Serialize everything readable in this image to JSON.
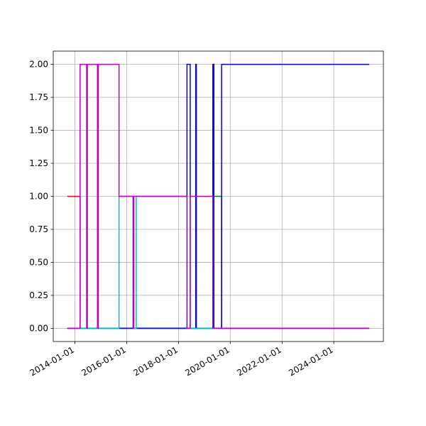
{
  "chart_data": {
    "type": "step",
    "x": [
      "2013-09-15",
      "2014-03-15",
      "2014-06-15",
      "2014-06-25",
      "2014-11-15",
      "2014-11-25",
      "2015-09-15",
      "2016-04-01",
      "2016-04-10",
      "2016-05-15",
      "2018-05-01",
      "2018-06-15",
      "2018-09-01",
      "2018-09-10",
      "2019-05-01",
      "2019-05-15",
      "2019-09-01",
      "2025-05-15"
    ],
    "series": [
      {
        "name": "red",
        "color": "#ff0000",
        "values": [
          1,
          0,
          0,
          0,
          0,
          0,
          0,
          0,
          0,
          0,
          0,
          0,
          0,
          0,
          0,
          0,
          0,
          0
        ]
      },
      {
        "name": "green",
        "color": "#008000",
        "values": [
          0,
          0,
          0,
          0,
          0,
          0,
          0,
          0,
          0,
          0,
          0,
          0,
          0,
          0,
          1,
          1,
          0,
          0
        ]
      },
      {
        "name": "blue",
        "color": "#0000ff",
        "values": [
          0,
          0,
          0,
          0,
          0,
          0,
          0,
          0,
          0,
          0,
          2,
          0,
          2,
          0,
          2,
          0,
          2,
          2
        ]
      },
      {
        "name": "cyan",
        "color": "#00bfbf",
        "values": [
          0,
          0,
          0,
          0,
          0,
          0,
          1,
          0,
          0,
          1,
          0,
          0,
          0,
          0,
          0,
          0,
          0,
          0
        ]
      },
      {
        "name": "magenta",
        "color": "#bf00bf",
        "values": [
          0,
          2,
          0,
          2,
          0,
          2,
          1,
          0,
          1,
          1,
          0,
          1,
          1,
          1,
          0,
          0,
          0,
          0
        ]
      }
    ],
    "xlim": [
      "2013-03-01",
      "2025-12-01"
    ],
    "xticks": [
      "2014-01-01",
      "2016-01-01",
      "2018-01-01",
      "2020-01-01",
      "2022-01-01",
      "2024-01-01"
    ],
    "ylim": [
      -0.1,
      2.1
    ],
    "yticks": [
      {
        "value": 0,
        "label": "0.00"
      },
      {
        "value": 0.25,
        "label": "0.25"
      },
      {
        "value": 0.5,
        "label": "0.50"
      },
      {
        "value": 0.75,
        "label": "0.75"
      },
      {
        "value": 1,
        "label": "1.00"
      },
      {
        "value": 1.25,
        "label": "1.25"
      },
      {
        "value": 1.5,
        "label": "1.50"
      },
      {
        "value": 1.75,
        "label": "1.75"
      },
      {
        "value": 2,
        "label": "2.00"
      }
    ],
    "grid": true
  }
}
